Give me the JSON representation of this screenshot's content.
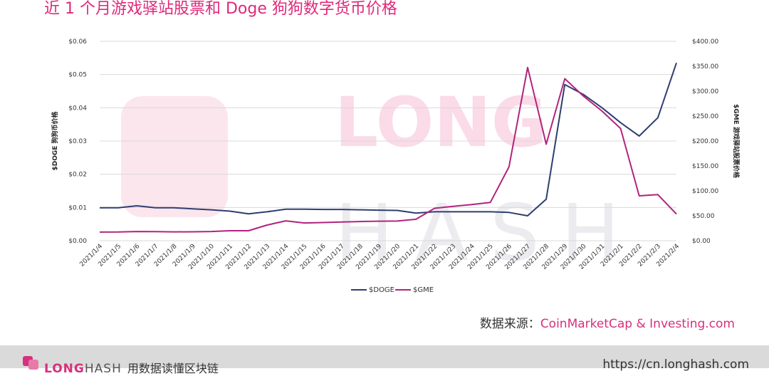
{
  "header": {
    "title": "近 1 个月游戏驿站股票和 Doge 狗狗数字货币价格"
  },
  "watermark": {
    "text_top": "LONG",
    "text_bottom": "HASH"
  },
  "source": {
    "label": "数据来源：",
    "sites": "CoinMarketCap & Investing.com"
  },
  "footer": {
    "brand_pink": "LONG",
    "brand_gray": "HASH",
    "slogan": "用数据读懂区块链",
    "url": "https://cn.longhash.com"
  },
  "colors": {
    "title": "#e0287a",
    "doge": "#2f3e70",
    "gme": "#b1247e",
    "grid": "#d9d9d9",
    "footer_bg": "#dadada"
  },
  "chart_data": {
    "type": "line",
    "categories": [
      "2021/1/4",
      "2021/1/5",
      "2021/1/6",
      "2021/1/7",
      "2021/1/8",
      "2021/1/9",
      "2021/1/10",
      "2021/1/11",
      "2021/1/12",
      "2021/1/13",
      "2021/1/14",
      "2021/1/15",
      "2021/1/16",
      "2021/1/17",
      "2021/1/18",
      "2021/1/19",
      "2021/1/20",
      "2021/1/21",
      "2021/1/22",
      "2021/1/23",
      "2021/1/24",
      "2021/1/25",
      "2021/1/26",
      "2021/1/27",
      "2021/1/28",
      "2021/1/29",
      "2021/1/30",
      "2021/1/31",
      "2021/2/1",
      "2021/2/2",
      "2021/2/3",
      "2021/2/4"
    ],
    "series": [
      {
        "name": "$DOGE",
        "axis": "left",
        "color": "#2f3e70",
        "values": [
          0.0099,
          0.0099,
          0.0105,
          0.0099,
          0.0099,
          0.0096,
          0.0093,
          0.0089,
          0.0081,
          0.0087,
          0.0095,
          0.0095,
          0.0094,
          0.0094,
          0.0093,
          0.0092,
          0.0091,
          0.0083,
          0.0087,
          0.0087,
          0.0087,
          0.0087,
          0.0085,
          0.0075,
          0.0125,
          0.047,
          0.044,
          0.04,
          0.0355,
          0.0315,
          0.037,
          0.0535
        ]
      },
      {
        "name": "$GME",
        "axis": "right",
        "color": "#b1247e",
        "values": [
          17.25,
          17.37,
          18.36,
          18.08,
          17.69,
          17.9,
          18.5,
          19.94,
          19.95,
          31.4,
          39.91,
          35.5,
          36.4,
          37.5,
          38.5,
          39.12,
          39.36,
          43.03,
          65.01,
          69.0,
          72.5,
          76.79,
          147.98,
          347.51,
          193.6,
          325.0,
          290.0,
          260.0,
          225.0,
          90.0,
          92.41,
          53.5
        ]
      }
    ],
    "left_axis": {
      "label": "$DOGE 狗狗币价格",
      "min": 0,
      "max": 0.06,
      "ticks": [
        "$0.00",
        "$0.01",
        "$0.02",
        "$0.03",
        "$0.04",
        "$0.05",
        "$0.06"
      ]
    },
    "right_axis": {
      "label": "$GME 游戏驿站股票价格",
      "min": 0,
      "max": 400,
      "ticks": [
        "$0.00",
        "$50.00",
        "$100.00",
        "$150.00",
        "$200.00",
        "$250.00",
        "$300.00",
        "$350.00",
        "$400.00"
      ]
    },
    "grid": true,
    "legend": {
      "placement": "bottom-center",
      "items": [
        "$DOGE",
        "$GME"
      ]
    }
  }
}
